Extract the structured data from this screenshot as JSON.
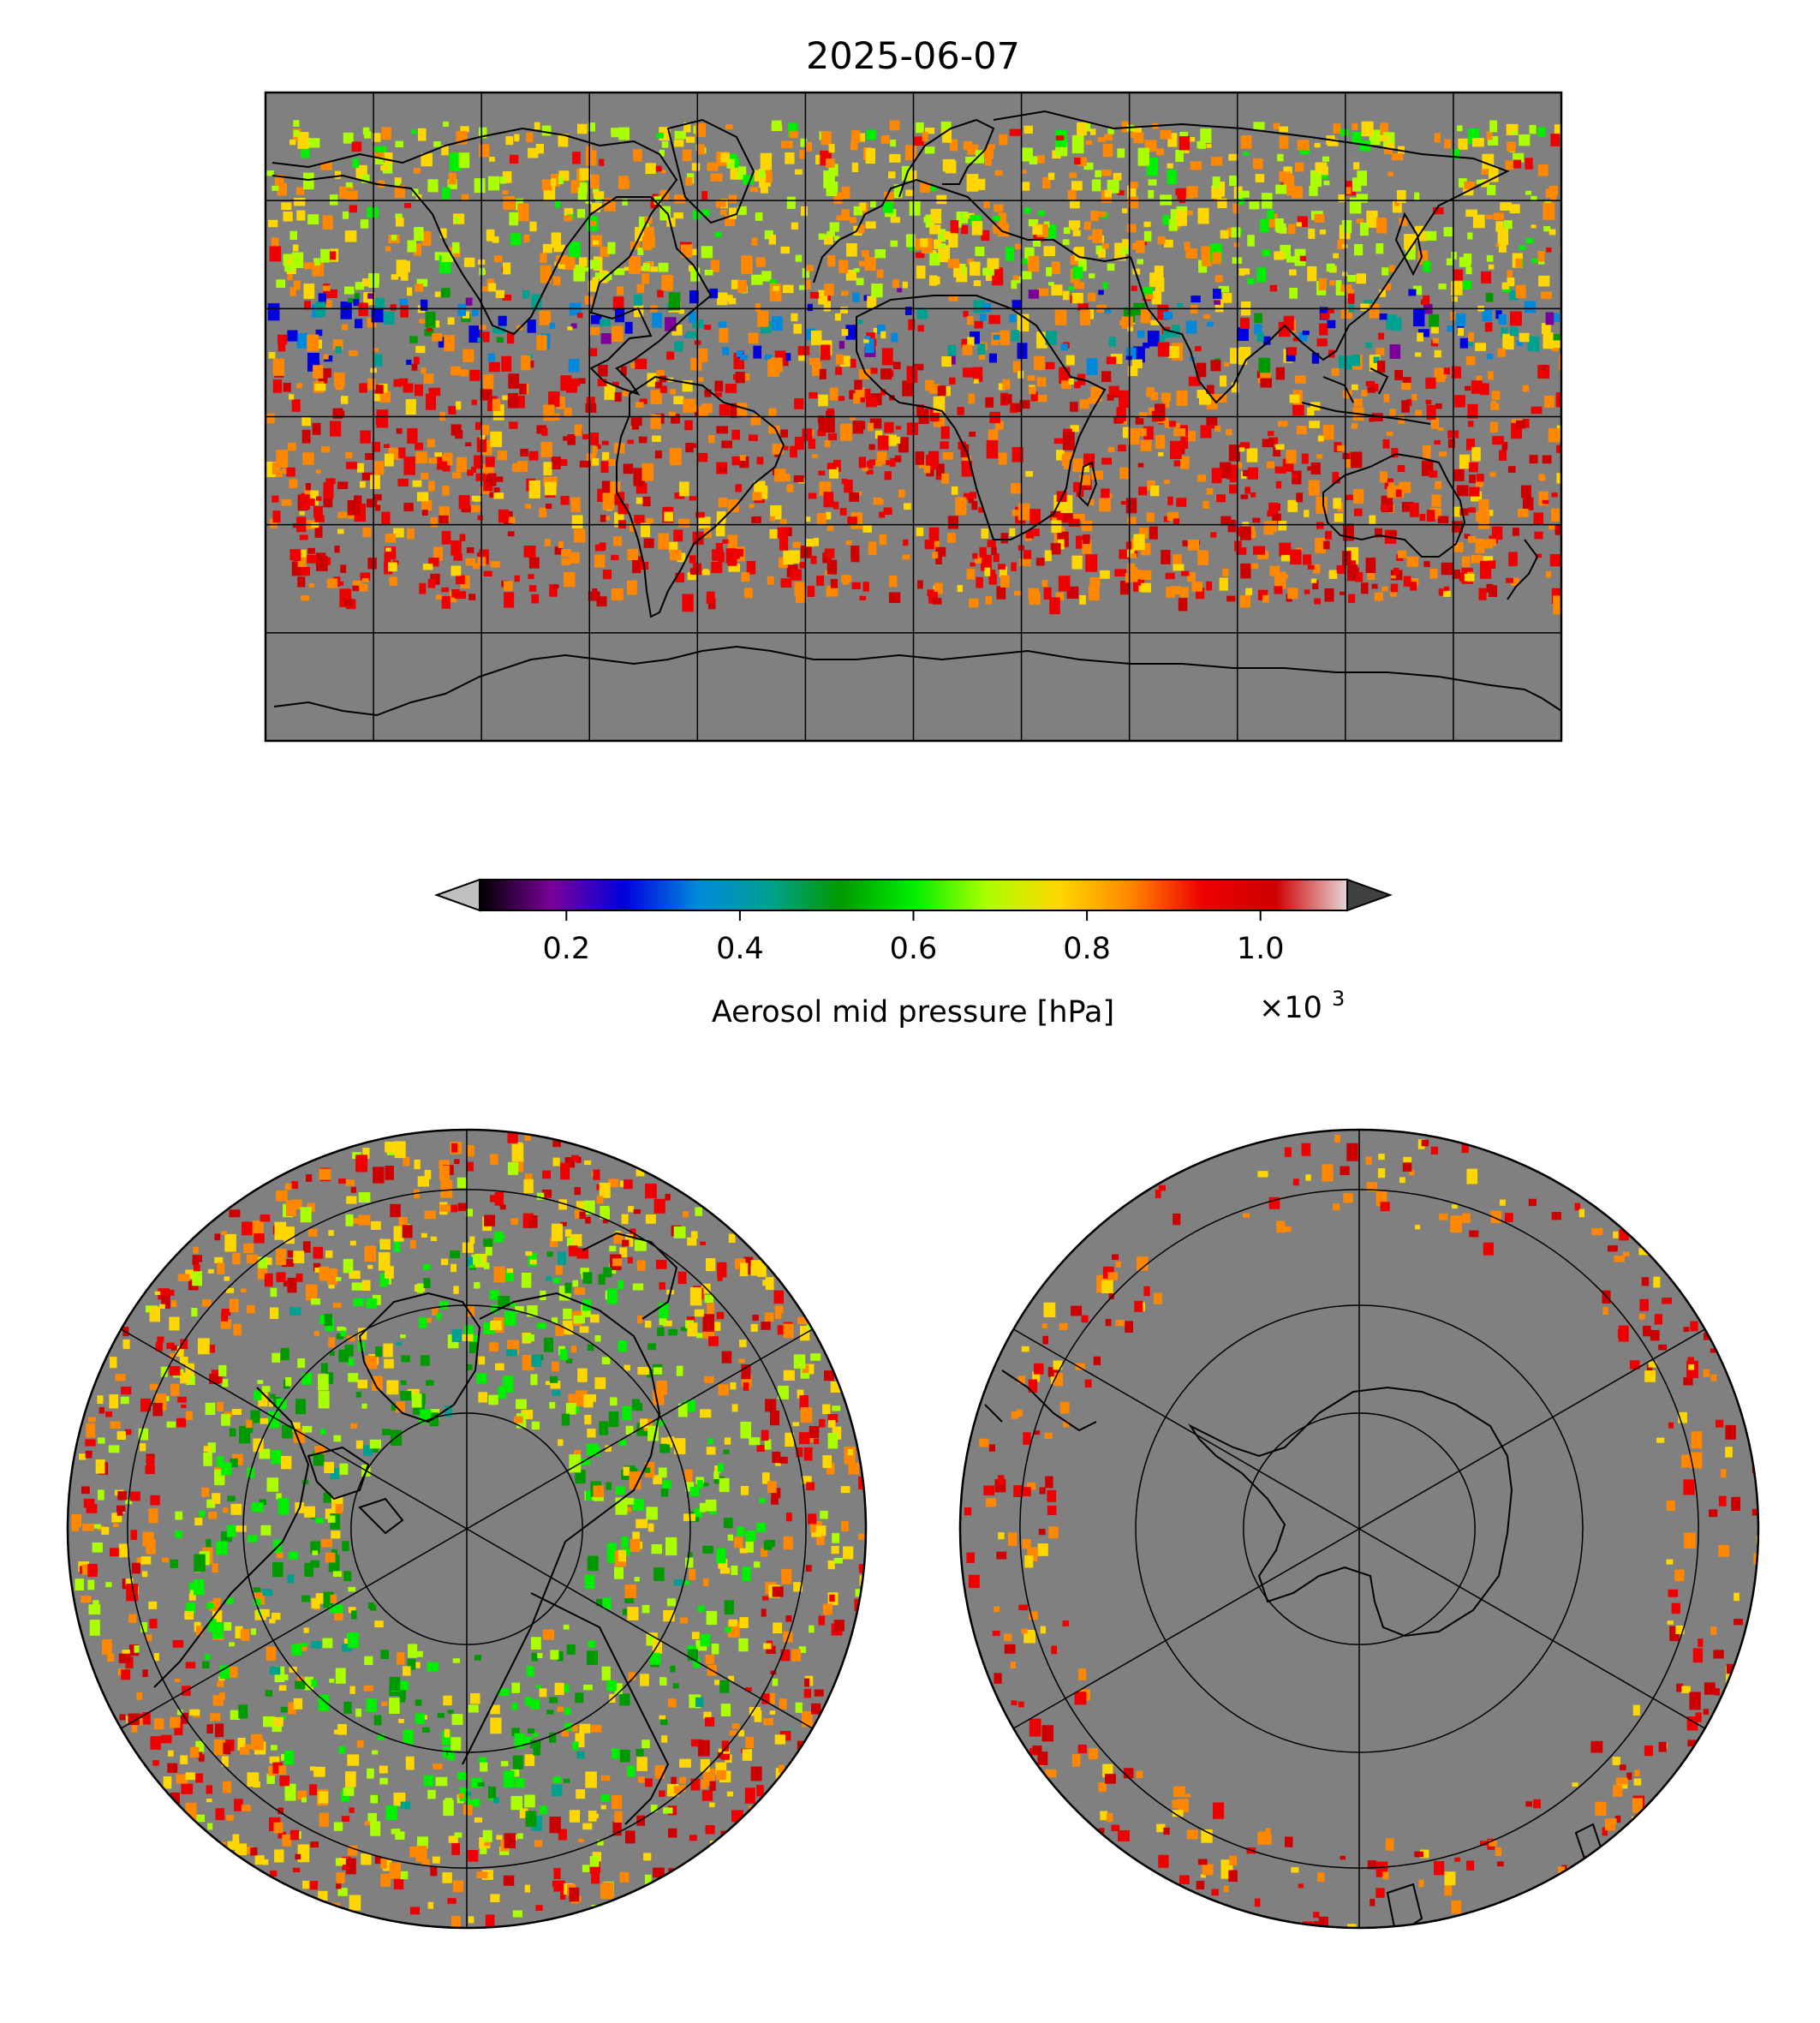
{
  "title": "2025-06-07",
  "colorbar": {
    "label": "Aerosol mid pressure [hPa]",
    "multiplier_base": "×10",
    "multiplier_exp": "3",
    "vmin": 0.1,
    "vmax": 1.1,
    "ticks": [
      {
        "value": 0.2,
        "label": "0.2"
      },
      {
        "value": 0.4,
        "label": "0.4"
      },
      {
        "value": 0.6,
        "label": "0.6"
      },
      {
        "value": 0.8,
        "label": "0.8"
      },
      {
        "value": 1.0,
        "label": "1.0"
      }
    ],
    "extend": "both",
    "under_color": "#c0c0c0",
    "over_color": "#404040",
    "colormap_stops": [
      "#000000",
      "#7a0099",
      "#0000dd",
      "#0088dd",
      "#00a090",
      "#009a00",
      "#00ee00",
      "#aaff00",
      "#ffd700",
      "#ff8800",
      "#ee0000",
      "#cc0000",
      "#e6d6d6"
    ]
  },
  "panels": {
    "global_map": {
      "projection": "plate-carree",
      "background": "#808080"
    },
    "north_polar": {
      "projection": "north-polar-stereographic",
      "background": "#808080"
    },
    "south_polar": {
      "projection": "south-polar-stereographic",
      "background": "#808080"
    }
  },
  "colors": {
    "no_data": "#808080",
    "coastline": "#000000",
    "gridline": "#000000"
  }
}
